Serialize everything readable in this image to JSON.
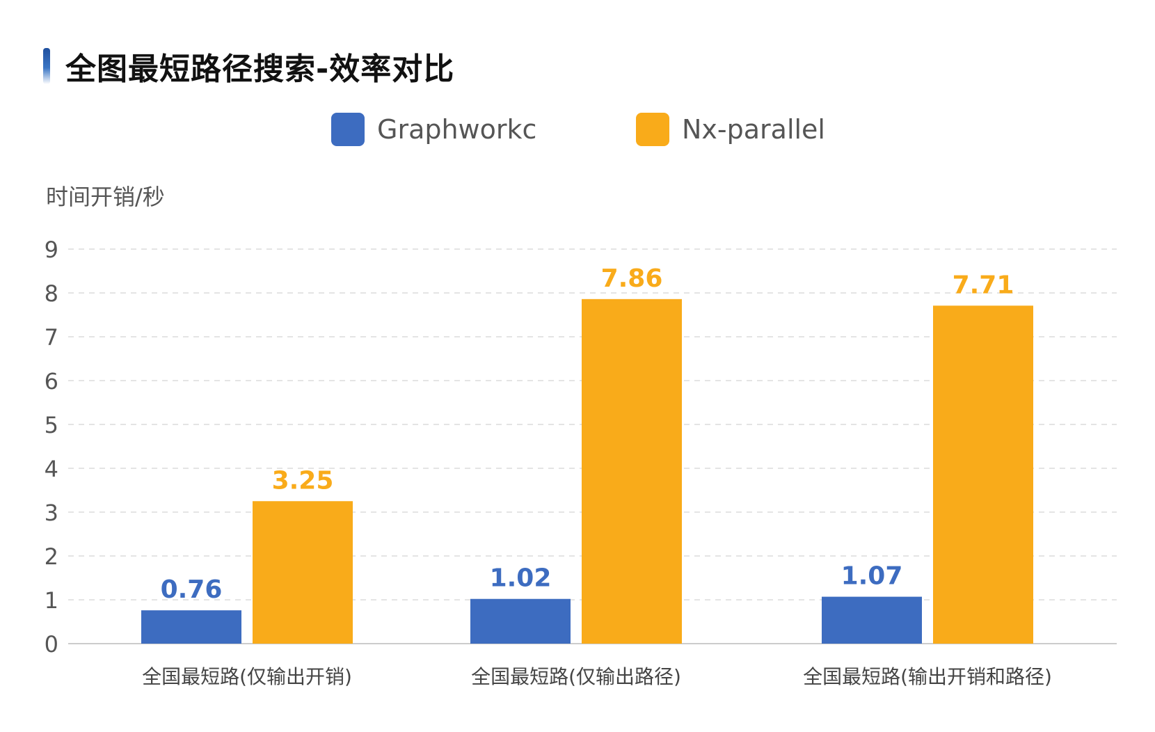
{
  "header": {
    "title": "全图最短路径搜索-效率对比"
  },
  "legend": [
    {
      "label": "Graphworkc",
      "color": "#3d6cc0"
    },
    {
      "label": "Nx-parallel",
      "color": "#f9ab1a"
    }
  ],
  "chart_data": {
    "type": "bar",
    "ylabel": "时间开销/秒",
    "ylim": [
      0,
      9
    ],
    "yticks": [
      "0",
      "1",
      "2",
      "3",
      "4",
      "5",
      "6",
      "7",
      "8",
      "9"
    ],
    "grid": true,
    "legend_position": "top-center",
    "categories": [
      "全国最短路(仅输出开销)",
      "全国最短路(仅输出路径)",
      "全国最短路(输出开销和路径)"
    ],
    "series": [
      {
        "name": "Graphworkc",
        "color": "#3d6cc0",
        "values": [
          0.76,
          1.02,
          1.07
        ],
        "labels": [
          "0.76",
          "1.02",
          "1.07"
        ]
      },
      {
        "name": "Nx-parallel",
        "color": "#f9ab1a",
        "values": [
          3.25,
          7.86,
          7.71
        ],
        "labels": [
          "3.25",
          "7.86",
          "7.71"
        ]
      }
    ]
  }
}
